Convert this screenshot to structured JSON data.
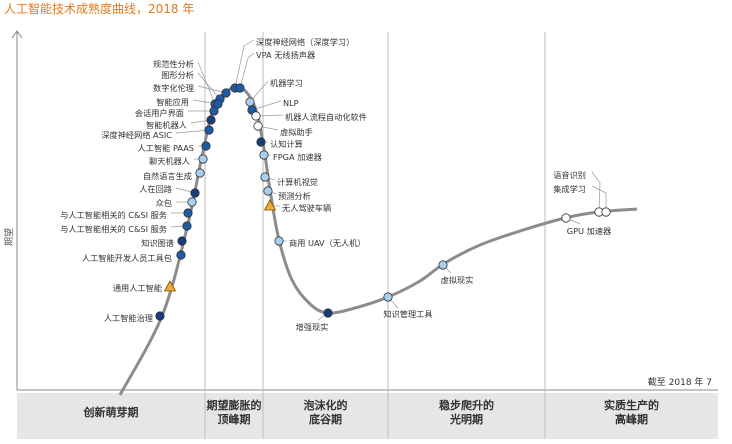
{
  "title": "人工智能技术成熟度曲线，2018 年",
  "chart_data": {
    "type": "scatter",
    "title": "人工智能技术成熟度曲线，2018 年",
    "ylabel": "期望",
    "note": "截至 2018 年 7",
    "phases": [
      [
        "创新萌芽期"
      ],
      [
        "期望膨胀的",
        "顶峰期"
      ],
      [
        "泡沫化的",
        "底谷期"
      ],
      [
        "稳步爬升的",
        "光明期"
      ],
      [
        "实质生产的",
        "高峰期"
      ]
    ],
    "legend_colors": {
      "lt2": "#a9cff0",
      "y2to5": "#1e5aa6",
      "y5to10": "#153e7a",
      "gt10": "#f2a93b",
      "obsolete": "#ffffff"
    },
    "technologies": [
      {
        "name": "深度神经网络（深度学习）",
        "cat": "y2to5"
      },
      {
        "name": "VPA 无线扬声器",
        "cat": "y2to5"
      },
      {
        "name": "规范性分析",
        "cat": "y2to5"
      },
      {
        "name": "图形分析",
        "cat": "y2to5"
      },
      {
        "name": "数字化伦理",
        "cat": "y2to5"
      },
      {
        "name": "机器学习",
        "cat": "lt2"
      },
      {
        "name": "智能应用",
        "cat": "y2to5"
      },
      {
        "name": "NLP",
        "cat": "y2to5"
      },
      {
        "name": "会话用户界面",
        "cat": "y2to5"
      },
      {
        "name": "机器人流程自动化软件",
        "cat": "obsolete"
      },
      {
        "name": "智能机器人",
        "cat": "y5to10"
      },
      {
        "name": "虚拟助手",
        "cat": "obsolete"
      },
      {
        "name": "深度神经网络 ASIC",
        "cat": "y2to5"
      },
      {
        "name": "认知计算",
        "cat": "y5to10"
      },
      {
        "name": "人工智能 PAAS",
        "cat": "y2to5"
      },
      {
        "name": "FPGA 加速器",
        "cat": "lt2"
      },
      {
        "name": "聊天机器人",
        "cat": "lt2"
      },
      {
        "name": "自然语言生成",
        "cat": "lt2"
      },
      {
        "name": "计算机视觉",
        "cat": "lt2"
      },
      {
        "name": "人在回路",
        "cat": "y5to10"
      },
      {
        "name": "预测分析",
        "cat": "lt2"
      },
      {
        "name": "众包",
        "cat": "lt2"
      },
      {
        "name": "无人驾驶车辆",
        "cat": "gt10"
      },
      {
        "name": "与人工智能相关的 C&SI 服务",
        "cat": "y2to5"
      },
      {
        "name": "与人工智能相关的 C&SI 服务",
        "cat": "y2to5"
      },
      {
        "name": "商用 UAV（无人机）",
        "cat": "lt2"
      },
      {
        "name": "知识图谱",
        "cat": "y5to10"
      },
      {
        "name": "人工智能开发人员工具包",
        "cat": "y2to5"
      },
      {
        "name": "通用人工智能",
        "cat": "gt10"
      },
      {
        "name": "人工智能治理",
        "cat": "y5to10"
      },
      {
        "name": "增强现实",
        "cat": "y5to10"
      },
      {
        "name": "知识管理工具",
        "cat": "lt2"
      },
      {
        "name": "虚拟现实",
        "cat": "lt2"
      },
      {
        "name": "语音识别",
        "cat": "obsolete"
      },
      {
        "name": "集成学习",
        "cat": "obsolete"
      },
      {
        "name": "GPU 加速器",
        "cat": "obsolete"
      }
    ]
  }
}
